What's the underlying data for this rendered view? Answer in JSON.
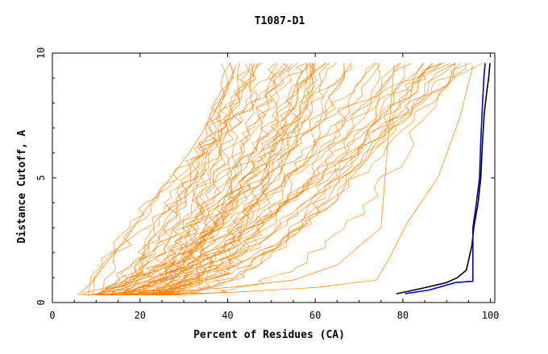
{
  "chart_data": {
    "type": "line",
    "title": "T1087-D1",
    "xlabel": "Percent of Residues (CA)",
    "ylabel": "Distance Cutoff, A",
    "xlim": [
      0,
      101
    ],
    "ylim": [
      0,
      10
    ],
    "x_ticks": [
      0,
      20,
      40,
      60,
      80,
      100
    ],
    "y_ticks": [
      0,
      5,
      10
    ],
    "grid": false,
    "legend": "none",
    "colors": {
      "other_models": "#ff8000",
      "highlight_black": "#000000",
      "highlight_blue": "#0000cc"
    },
    "series_groups": [
      {
        "group": "other-models",
        "color": "#ff8000",
        "count": 60,
        "representative": [
          {
            "x": [
              5.8,
              9,
              12,
              17,
              22,
              27,
              32,
              37,
              42
            ],
            "y": [
              0.3,
              0.8,
              1.5,
              2.6,
              3.9,
              5.0,
              6.2,
              7.6,
              9.5
            ]
          },
          {
            "x": [
              8.5,
              15,
              22,
              30,
              38,
              44,
              52,
              58
            ],
            "y": [
              0.3,
              0.5,
              0.9,
              1.4,
              2.3,
              3.5,
              5.2,
              7.5
            ]
          },
          {
            "x": [
              13,
              25,
              40,
              55,
              65,
              75,
              78
            ],
            "y": [
              0.3,
              0.4,
              0.6,
              0.9,
              1.5,
              3.0,
              9.5
            ]
          },
          {
            "x": [
              20,
              40,
              60,
              74,
              77,
              81,
              88,
              93,
              96
            ],
            "y": [
              0.3,
              0.4,
              0.6,
              0.9,
              1.8,
              3.2,
              5.0,
              7.4,
              9.5
            ]
          }
        ]
      }
    ],
    "series": [
      {
        "color": "#000000",
        "x": [
          78.5,
          84,
          90,
          92.5,
          94.5,
          95.8,
          96.2,
          97.2,
          97.8,
          98.2,
          98.6,
          99.2,
          99.6,
          99.9
        ],
        "y": [
          0.35,
          0.55,
          0.8,
          1.0,
          1.3,
          2.3,
          3.0,
          4.0,
          5.0,
          6.5,
          7.6,
          8.5,
          9.0,
          9.6
        ]
      },
      {
        "color": "#0000cc",
        "x": [
          80.5,
          86,
          92,
          96.0,
          96.0,
          96.8,
          97.5,
          97.8,
          98.2,
          98.5,
          98.8
        ],
        "y": [
          0.35,
          0.5,
          0.8,
          0.85,
          3.0,
          4.0,
          5.0,
          6.5,
          8.0,
          9.0,
          9.6
        ]
      }
    ]
  }
}
